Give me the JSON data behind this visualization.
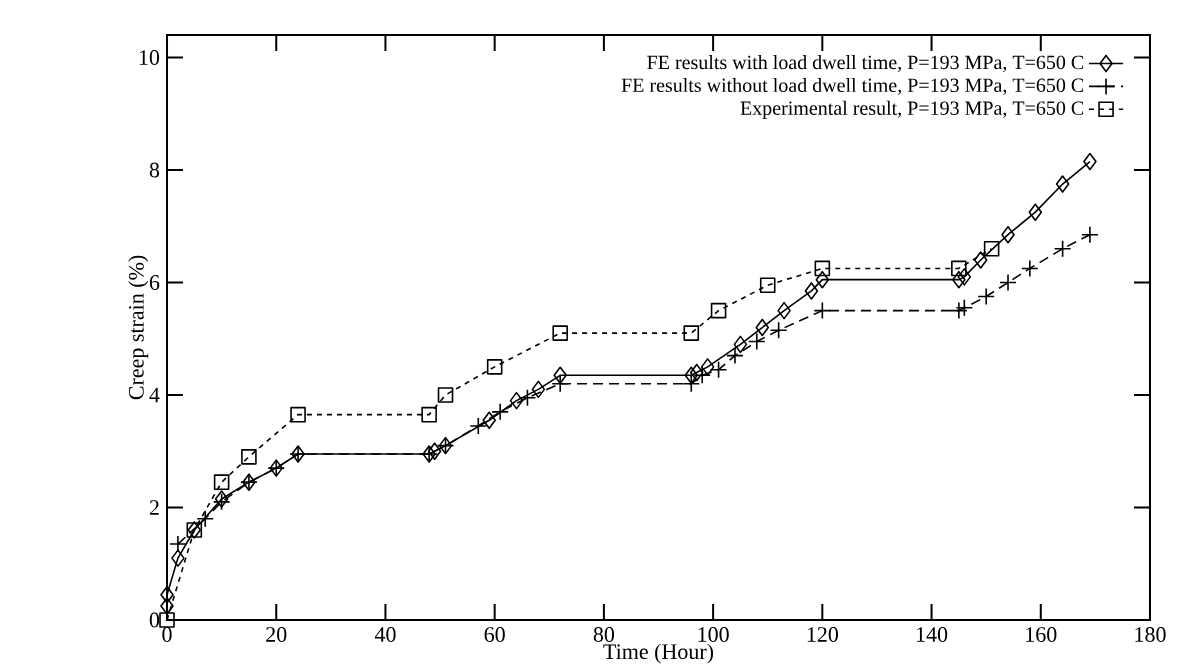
{
  "chart_data": {
    "type": "line",
    "xlabel": "Time (Hour)",
    "ylabel": "Creep strain (%)",
    "xlim": [
      0,
      180
    ],
    "ylim": [
      0,
      10.4
    ],
    "xticks": [
      0,
      20,
      40,
      60,
      80,
      100,
      120,
      140,
      160,
      180
    ],
    "yticks": [
      0,
      2,
      4,
      6,
      8,
      10
    ],
    "grid": false,
    "legend": "top right",
    "series": [
      {
        "name": "FE results with load dwell time, P=193 MPa, T=650 C",
        "color": "#000000",
        "marker": "diamond",
        "line_style": "solid",
        "x": [
          0,
          0,
          2,
          5,
          10,
          15,
          20,
          24,
          48,
          49,
          51,
          59,
          64,
          68,
          72,
          96,
          97,
          99,
          105,
          109,
          113,
          118,
          120,
          145,
          146,
          149,
          154,
          159,
          164,
          169
        ],
        "values": [
          0.25,
          0.45,
          1.1,
          1.6,
          2.15,
          2.45,
          2.7,
          2.95,
          2.95,
          3.0,
          3.1,
          3.55,
          3.9,
          4.1,
          4.35,
          4.35,
          4.4,
          4.5,
          4.9,
          5.2,
          5.5,
          5.85,
          6.05,
          6.05,
          6.1,
          6.4,
          6.85,
          7.25,
          7.75,
          8.15
        ]
      },
      {
        "name": "FE results without load dwell time, P=193 MPa, T=650 C",
        "color": "#000000",
        "marker": "cross",
        "line_style": "dashed",
        "x": [
          2,
          7,
          10,
          15,
          20,
          24,
          48,
          51,
          57,
          61,
          66,
          72,
          96,
          98,
          101,
          104,
          108,
          112,
          120,
          145,
          146,
          150,
          154,
          158,
          164,
          169
        ],
        "values": [
          1.35,
          1.8,
          2.1,
          2.45,
          2.7,
          2.95,
          2.95,
          3.1,
          3.45,
          3.7,
          3.95,
          4.2,
          4.2,
          4.35,
          4.45,
          4.7,
          4.95,
          5.15,
          5.5,
          5.5,
          5.55,
          5.75,
          6.0,
          6.25,
          6.6,
          6.85
        ]
      },
      {
        "name": "Experimental result, P=193 MPa, T=650 C",
        "color": "#000000",
        "marker": "square",
        "line_style": "dotted",
        "x": [
          0,
          5,
          10,
          15,
          24,
          48,
          51,
          60,
          72,
          96,
          101,
          110,
          120,
          145,
          151
        ],
        "values": [
          0,
          1.6,
          2.45,
          2.9,
          3.65,
          3.65,
          4.0,
          4.5,
          5.1,
          5.1,
          5.5,
          5.95,
          6.25,
          6.25,
          6.6
        ]
      }
    ]
  }
}
